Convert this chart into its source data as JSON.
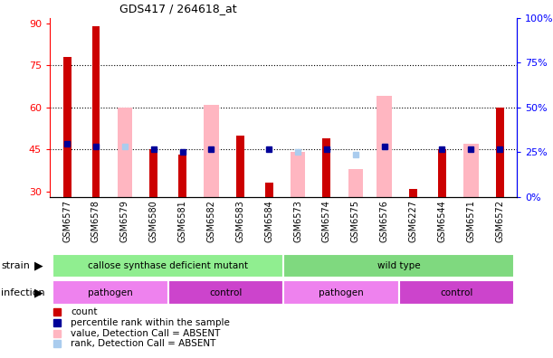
{
  "title": "GDS417 / 264618_at",
  "samples": [
    "GSM6577",
    "GSM6578",
    "GSM6579",
    "GSM6580",
    "GSM6581",
    "GSM6582",
    "GSM6583",
    "GSM6584",
    "GSM6573",
    "GSM6574",
    "GSM6575",
    "GSM6576",
    "GSM6227",
    "GSM6544",
    "GSM6571",
    "GSM6572"
  ],
  "red_bars": [
    78,
    89,
    null,
    45,
    43,
    null,
    50,
    33,
    null,
    49,
    null,
    null,
    31,
    45,
    null,
    60
  ],
  "pink_bars": [
    null,
    null,
    60,
    null,
    null,
    61,
    null,
    null,
    44,
    null,
    38,
    64,
    null,
    null,
    47,
    null
  ],
  "blue_squares_val": [
    47,
    46,
    null,
    45,
    44,
    45,
    null,
    45,
    null,
    45,
    null,
    46,
    null,
    45,
    45,
    45
  ],
  "lightblue_squares_val": [
    null,
    null,
    46,
    null,
    null,
    null,
    null,
    null,
    44,
    null,
    43,
    46,
    null,
    null,
    null,
    null
  ],
  "strain_groups": [
    {
      "label": "callose synthase deficient mutant",
      "start": 0,
      "end": 8,
      "color": "#90EE90"
    },
    {
      "label": "wild type",
      "start": 8,
      "end": 16,
      "color": "#7FD97F"
    }
  ],
  "infection_groups": [
    {
      "label": "pathogen",
      "start": 0,
      "end": 4,
      "color": "#EE82EE"
    },
    {
      "label": "control",
      "start": 4,
      "end": 8,
      "color": "#CC44CC"
    },
    {
      "label": "pathogen",
      "start": 8,
      "end": 12,
      "color": "#EE82EE"
    },
    {
      "label": "control",
      "start": 12,
      "end": 16,
      "color": "#CC44CC"
    }
  ],
  "ylim_left": [
    28,
    92
  ],
  "ylim_right": [
    0,
    100
  ],
  "yticks_left": [
    30,
    45,
    60,
    75,
    90
  ],
  "yticks_right": [
    0,
    25,
    50,
    75,
    100
  ],
  "hlines": [
    45,
    60,
    75
  ],
  "bar_width": 0.4,
  "red_color": "#CC0000",
  "pink_color": "#FFB6C1",
  "blue_color": "#000099",
  "lightblue_color": "#AACCEE",
  "bg_color": "#CCCCCC",
  "plot_bg": "#FFFFFF",
  "square_size": 5
}
